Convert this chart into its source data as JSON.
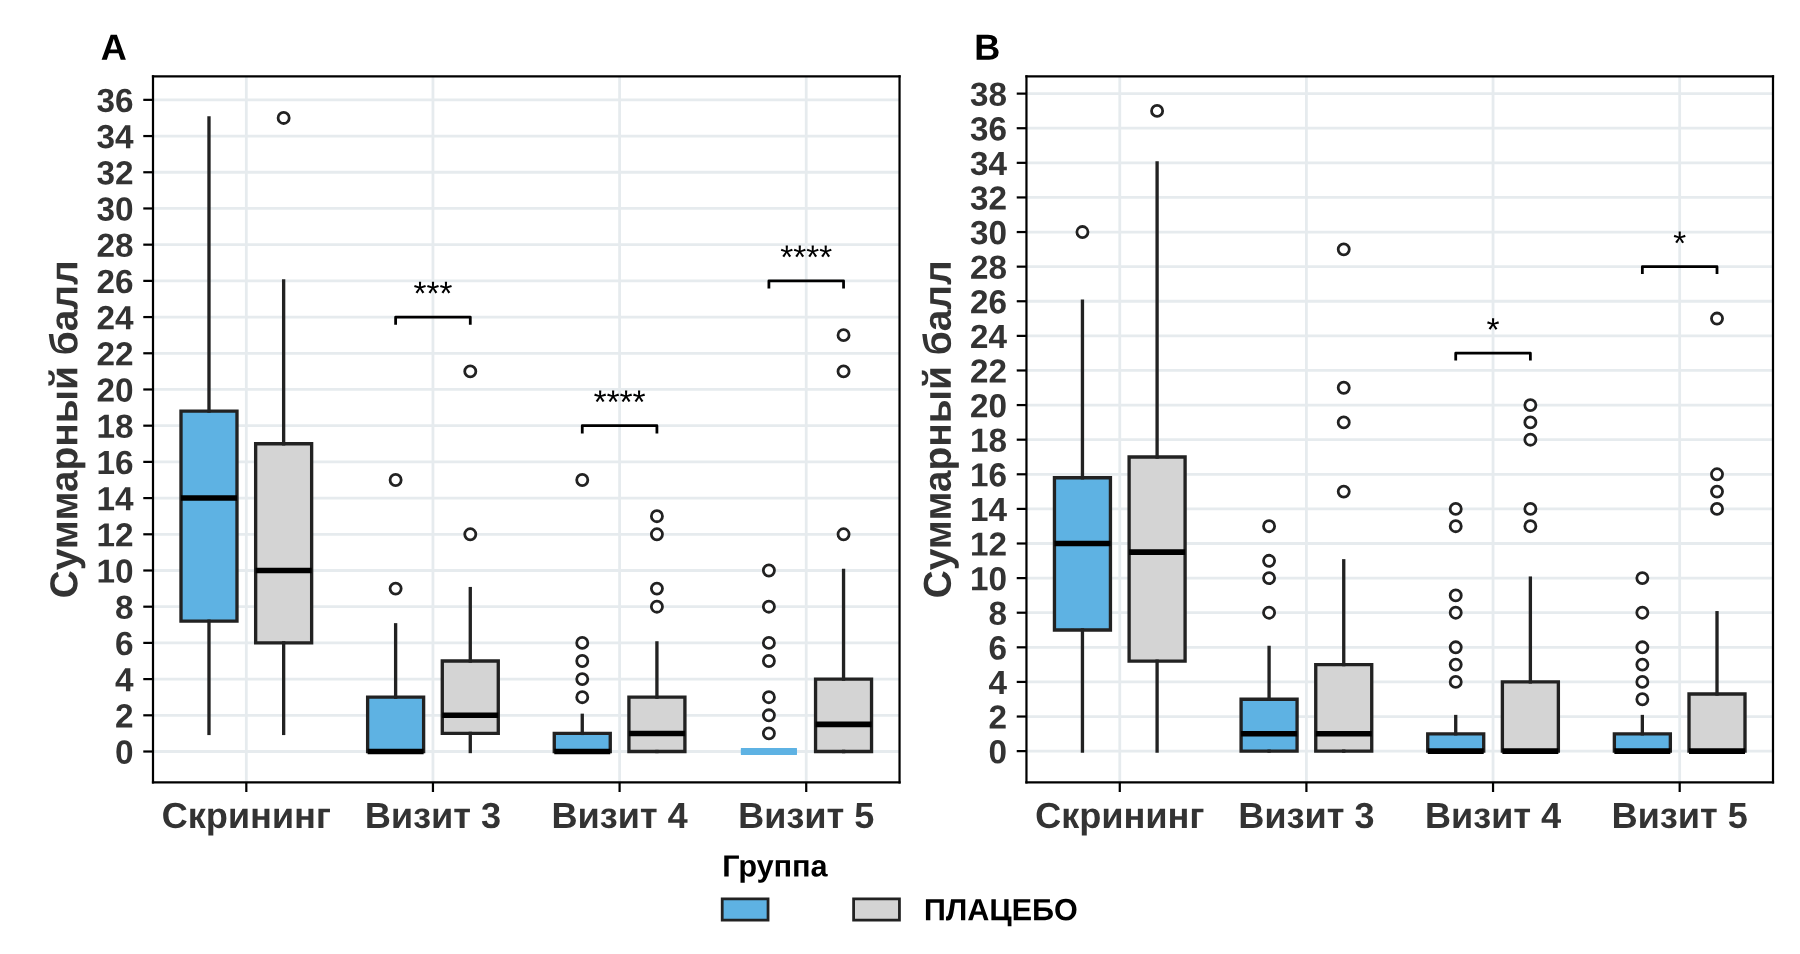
{
  "chart_data": [
    {
      "type": "box",
      "title": "A",
      "ylabel": "Суммарный балл",
      "categories": [
        "Скрининг",
        "Визит 3",
        "Визит 4",
        "Визит 5"
      ],
      "ylim": [
        -1.7,
        37.3
      ],
      "yticks": [
        0,
        2,
        4,
        6,
        8,
        10,
        12,
        14,
        16,
        18,
        20,
        22,
        24,
        26,
        28,
        30,
        32,
        34,
        36
      ],
      "grid": true,
      "legend": "bottom",
      "legend_title": "Группа",
      "series": [
        {
          "color": "#5eb2e3",
          "boxes": [
            {
              "low": 1,
              "q1": 7.2,
              "median": 14,
              "q3": 18.8,
              "high": 35
            },
            {
              "low": 0,
              "q1": 0,
              "median": 0,
              "q3": 3,
              "high": 7,
              "outliers": [
                9,
                15
              ]
            },
            {
              "low": 0,
              "q1": 0,
              "median": 0,
              "q3": 1,
              "high": 2,
              "outliers": [
                3,
                4,
                5,
                6,
                15
              ]
            },
            {
              "low": 0,
              "q1": 0,
              "median": 0,
              "q3": 0,
              "high": 0,
              "outliers": [
                1,
                2,
                3,
                5,
                6,
                8,
                10
              ]
            }
          ]
        },
        {
          "name": "ПЛАЦЕБО",
          "color": "#d4d4d4",
          "boxes": [
            {
              "low": 1,
              "q1": 6,
              "median": 10,
              "q3": 17,
              "high": 26,
              "outliers": [
                35
              ]
            },
            {
              "low": 0,
              "q1": 1,
              "median": 2,
              "q3": 5,
              "high": 9,
              "outliers": [
                12,
                21
              ]
            },
            {
              "low": 0,
              "q1": 0,
              "median": 1,
              "q3": 3,
              "high": 6,
              "outliers": [
                8,
                9,
                12,
                13
              ]
            },
            {
              "low": 0,
              "q1": 0,
              "median": 1.5,
              "q3": 4,
              "high": 10,
              "outliers": [
                12,
                21,
                23
              ]
            }
          ]
        }
      ],
      "annotations": [
        "***",
        "****",
        "****"
      ]
    },
    {
      "type": "box",
      "title": "B",
      "ylabel": "Суммарный балл",
      "categories": [
        "Скрининг",
        "Визит 3",
        "Визит 4",
        "Визит 5"
      ],
      "ylim": [
        -1.8,
        39
      ],
      "yticks": [
        0,
        2,
        4,
        6,
        8,
        10,
        12,
        14,
        16,
        18,
        20,
        22,
        24,
        26,
        28,
        30,
        32,
        34,
        36,
        38
      ],
      "grid": true,
      "series": [
        {
          "color": "#5eb2e3",
          "boxes": [
            {
              "low": 0,
              "q1": 7,
              "median": 12,
              "q3": 15.8,
              "high": 26,
              "outliers": [
                30
              ]
            },
            {
              "low": 0,
              "q1": 0,
              "median": 1,
              "q3": 3,
              "high": 6,
              "outliers": [
                8,
                10,
                11,
                13
              ]
            },
            {
              "low": 0,
              "q1": 0,
              "median": 0,
              "q3": 1,
              "high": 2,
              "outliers": [
                4,
                5,
                6,
                8,
                9,
                13,
                14
              ]
            },
            {
              "low": 0,
              "q1": 0,
              "median": 0,
              "q3": 1,
              "high": 2,
              "outliers": [
                3,
                4,
                5,
                6,
                8,
                10
              ]
            }
          ]
        },
        {
          "name": "ПЛАЦЕБО",
          "color": "#d4d4d4",
          "boxes": [
            {
              "low": 0,
              "q1": 5.2,
              "median": 11.5,
              "q3": 17,
              "high": 34,
              "outliers": [
                37
              ]
            },
            {
              "low": 0,
              "q1": 0,
              "median": 1,
              "q3": 5,
              "high": 11,
              "outliers": [
                15,
                19,
                21,
                29
              ]
            },
            {
              "low": 0,
              "q1": 0,
              "median": 0,
              "q3": 4,
              "high": 10,
              "outliers": [
                13,
                14,
                18,
                19,
                20
              ]
            },
            {
              "low": 0,
              "q1": 0,
              "median": 0,
              "q3": 3.3,
              "high": 8,
              "outliers": [
                14,
                15,
                16,
                25
              ]
            }
          ]
        }
      ],
      "annotations": [
        "*",
        "*"
      ]
    }
  ]
}
